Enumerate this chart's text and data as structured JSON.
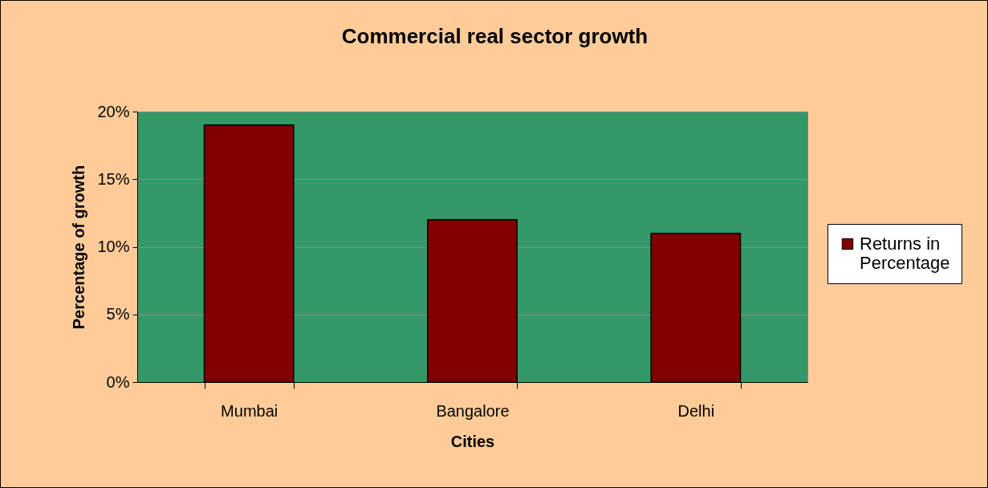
{
  "chart_data": {
    "type": "bar",
    "title": "Commercial real sector growth",
    "xlabel": "Cities",
    "ylabel": "Percentage of growth",
    "categories": [
      "Mumbai",
      "Bangalore",
      "Delhi"
    ],
    "series": [
      {
        "name": "Returns in Percentage",
        "color": "#800000",
        "values": [
          19,
          12,
          11
        ]
      }
    ],
    "ylim": [
      0,
      20
    ],
    "yticks": [
      {
        "value": 0,
        "label": "0%"
      },
      {
        "value": 5,
        "label": "5%"
      },
      {
        "value": 10,
        "label": "10%"
      },
      {
        "value": 15,
        "label": "15%"
      },
      {
        "value": 20,
        "label": "20%"
      }
    ],
    "grid": "y",
    "legend": "right"
  }
}
